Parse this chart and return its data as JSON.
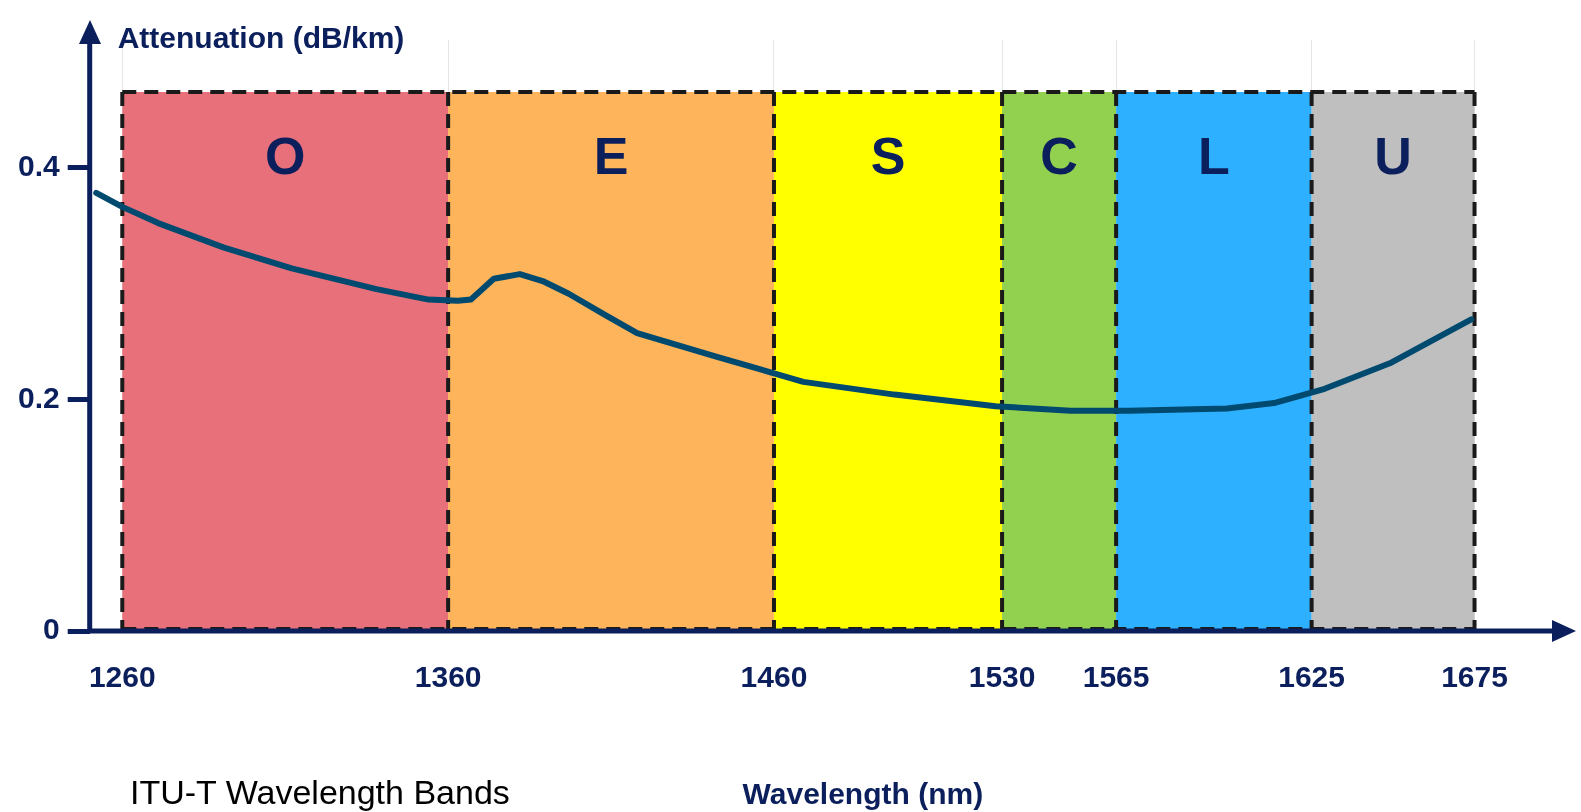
{
  "chart_data": {
    "type": "line",
    "xlabel": "Wavelength (nm)",
    "ylabel": "Attenuation (dB/km)",
    "annotations": [
      "ITU-T Wavelength Bands"
    ],
    "xlim": [
      1250,
      1700
    ],
    "xticks": [
      1260,
      1360,
      1460,
      1530,
      1565,
      1625,
      1675
    ],
    "ylim": [
      0,
      0.51
    ],
    "yticks": [
      0,
      0.2,
      0.4
    ],
    "grid": "x",
    "legend": false,
    "marker": "none",
    "line_style": "solid",
    "bands": [
      {
        "axis": "x",
        "from": 1260,
        "to": 1360,
        "label": "O",
        "color": "#e8707a"
      },
      {
        "axis": "x",
        "from": 1360,
        "to": 1460,
        "label": "E",
        "color": "#fdb45a"
      },
      {
        "axis": "x",
        "from": 1460,
        "to": 1530,
        "label": "S",
        "color": "#ffff00"
      },
      {
        "axis": "x",
        "from": 1530,
        "to": 1565,
        "label": "C",
        "color": "#92d050"
      },
      {
        "axis": "x",
        "from": 1565,
        "to": 1625,
        "label": "L",
        "color": "#2db0ff"
      },
      {
        "axis": "x",
        "from": 1625,
        "to": 1675,
        "label": "U",
        "color": "#bfbfbf"
      }
    ],
    "series": [
      {
        "color": "#004a70",
        "x": [
          1252,
          1260,
          1271,
          1291,
          1312,
          1338,
          1354,
          1363,
          1367,
          1374,
          1382,
          1389,
          1397,
          1408,
          1418,
          1442,
          1469,
          1497,
          1528,
          1551,
          1569,
          1599,
          1614,
          1629,
          1649,
          1674
        ],
        "values": [
          0.378,
          0.366,
          0.352,
          0.331,
          0.313,
          0.295,
          0.286,
          0.285,
          0.286,
          0.304,
          0.308,
          0.302,
          0.291,
          0.273,
          0.257,
          0.237,
          0.215,
          0.204,
          0.194,
          0.19,
          0.19,
          0.192,
          0.197,
          0.209,
          0.231,
          0.269
        ]
      }
    ]
  }
}
